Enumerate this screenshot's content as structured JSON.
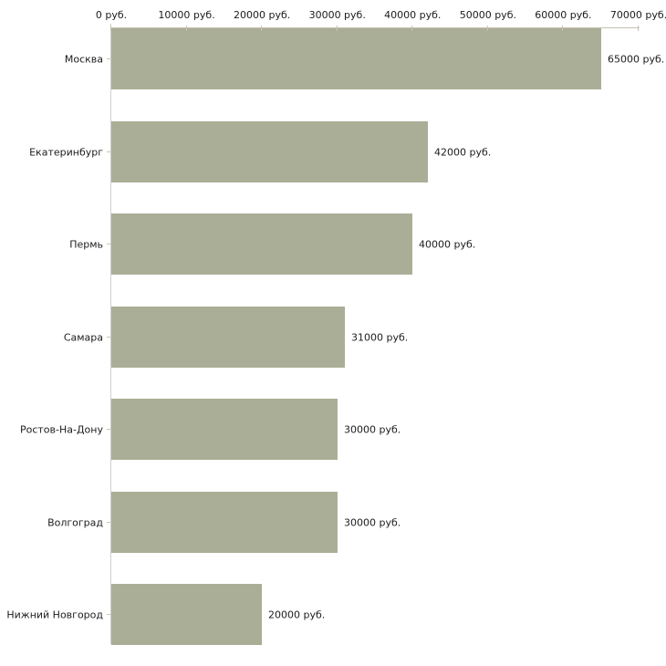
{
  "chart_data": {
    "type": "bar",
    "orientation": "horizontal",
    "title": "",
    "legend": "none",
    "grid": "off",
    "categories": [
      "Москва",
      "Екатеринбург",
      "Пермь",
      "Самара",
      "Ростов-На-Дону",
      "Волгоград",
      "Нижний Новгород"
    ],
    "values": [
      65000,
      42000,
      40000,
      31000,
      30000,
      30000,
      20000
    ],
    "value_labels": [
      "65000 руб.",
      "42000 руб.",
      "40000 руб.",
      "31000 руб.",
      "30000 руб.",
      "30000 руб.",
      "20000 руб."
    ],
    "x_axis": {
      "position": "top",
      "unit": "руб.",
      "min": 0,
      "max": 70000,
      "tick_values": [
        0,
        10000,
        20000,
        30000,
        40000,
        50000,
        60000,
        70000
      ],
      "tick_labels": [
        "0 руб.",
        "10000 руб.",
        "20000 руб.",
        "30000 руб.",
        "40000 руб.",
        "50000 руб.",
        "60000 руб.",
        "70000 руб."
      ]
    },
    "colors": {
      "bar": "#aaae96",
      "x_axis_line": "#c6c2b3",
      "x_axis_tick": "#c6c2b3",
      "y_axis_line": "#cfcfcf",
      "category_tick": "#c9c5b6",
      "text": "#1c1c1c",
      "background": "#ffffff"
    }
  }
}
